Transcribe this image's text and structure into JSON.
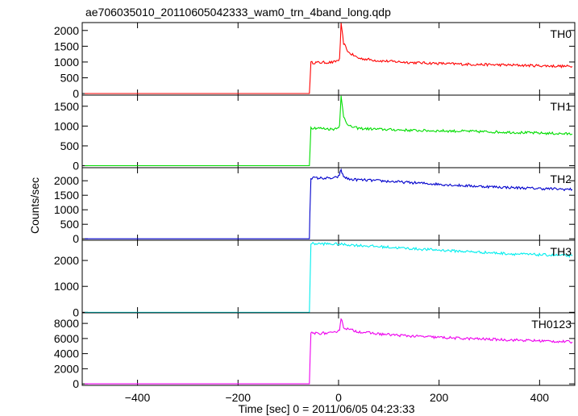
{
  "chart_data": {
    "type": "line",
    "title": "ae706035010_20110605042333_wam0_trn_4band_long.qdp",
    "xlabel": "Time [sec] 0 = 2011/06/05 04:23:33",
    "ylabel": "Counts/sec",
    "xlim": [
      -510,
      470
    ],
    "xticks": [
      -400,
      -200,
      0,
      200,
      400
    ],
    "grid": false,
    "panels": [
      {
        "name": "TH0",
        "color": "#ff0000",
        "ylim": [
          -50,
          2250
        ],
        "yticks": [
          0,
          500,
          1000,
          1500,
          2000
        ],
        "points": [
          [
            -505,
            0
          ],
          [
            -58,
            0
          ],
          [
            -55,
            980
          ],
          [
            -10,
            990
          ],
          [
            2,
            1080
          ],
          [
            5,
            2200
          ],
          [
            10,
            1600
          ],
          [
            20,
            1300
          ],
          [
            40,
            1120
          ],
          [
            80,
            1040
          ],
          [
            150,
            980
          ],
          [
            250,
            930
          ],
          [
            350,
            900
          ],
          [
            465,
            860
          ]
        ]
      },
      {
        "name": "TH1",
        "color": "#00dd00",
        "ylim": [
          -50,
          1780
        ],
        "yticks": [
          0,
          500,
          1000,
          1500
        ],
        "points": [
          [
            -505,
            0
          ],
          [
            -58,
            0
          ],
          [
            -55,
            960
          ],
          [
            -10,
            920
          ],
          [
            2,
            1000
          ],
          [
            5,
            1750
          ],
          [
            10,
            1250
          ],
          [
            20,
            1000
          ],
          [
            40,
            940
          ],
          [
            80,
            920
          ],
          [
            150,
            890
          ],
          [
            250,
            870
          ],
          [
            350,
            840
          ],
          [
            465,
            800
          ]
        ]
      },
      {
        "name": "TH2",
        "color": "#0000cc",
        "ylim": [
          -50,
          2450
        ],
        "yticks": [
          0,
          500,
          1000,
          1500,
          2000
        ],
        "points": [
          [
            -505,
            0
          ],
          [
            -58,
            0
          ],
          [
            -57,
            900
          ],
          [
            -55,
            2100
          ],
          [
            -10,
            2080
          ],
          [
            0,
            2150
          ],
          [
            5,
            2350
          ],
          [
            10,
            2150
          ],
          [
            20,
            2050
          ],
          [
            80,
            2000
          ],
          [
            150,
            1930
          ],
          [
            250,
            1830
          ],
          [
            350,
            1760
          ],
          [
            465,
            1700
          ]
        ]
      },
      {
        "name": "TH3",
        "color": "#00eeee",
        "ylim": [
          -20,
          2780
        ],
        "yticks": [
          0,
          1000,
          2000
        ],
        "points": [
          [
            -505,
            0
          ],
          [
            -58,
            0
          ],
          [
            -55,
            2650
          ],
          [
            0,
            2630
          ],
          [
            50,
            2570
          ],
          [
            150,
            2450
          ],
          [
            250,
            2350
          ],
          [
            350,
            2250
          ],
          [
            465,
            2180
          ]
        ]
      },
      {
        "name": "TH0123",
        "color": "#ee00ee",
        "ylim": [
          -200,
          9400
        ],
        "yticks": [
          0,
          2000,
          4000,
          6000,
          8000
        ],
        "points": [
          [
            -505,
            0
          ],
          [
            -58,
            0
          ],
          [
            -55,
            6700
          ],
          [
            -10,
            6700
          ],
          [
            2,
            7200
          ],
          [
            5,
            8700
          ],
          [
            10,
            7500
          ],
          [
            20,
            7200
          ],
          [
            40,
            6900
          ],
          [
            80,
            6600
          ],
          [
            150,
            6300
          ],
          [
            250,
            6000
          ],
          [
            350,
            5800
          ],
          [
            465,
            5550
          ]
        ]
      }
    ]
  }
}
